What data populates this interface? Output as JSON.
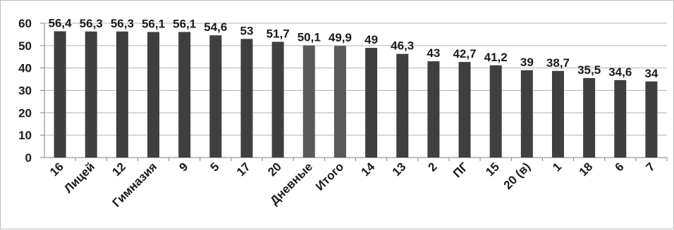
{
  "chart_data": {
    "type": "bar",
    "categories": [
      "16",
      "Лицей",
      "12",
      "Гимназия",
      "9",
      "5",
      "17",
      "20",
      "Дневные",
      "Итого",
      "14",
      "13",
      "2",
      "ПГ",
      "15",
      "20 (в)",
      "1",
      "18",
      "6",
      "7"
    ],
    "values": [
      56.4,
      56.3,
      56.3,
      56.1,
      56.1,
      54.6,
      53,
      51.7,
      50.1,
      49.9,
      49,
      46.3,
      43,
      42.7,
      41.2,
      39,
      38.7,
      35.5,
      34.6,
      34
    ],
    "data_labels": [
      "56,4",
      "56,3",
      "56,3",
      "56,1",
      "56,1",
      "54,6",
      "53",
      "51,7",
      "50,1",
      "49,9",
      "49",
      "46,3",
      "43",
      "42,7",
      "41,2",
      "39",
      "38,7",
      "35,5",
      "34,6",
      "34"
    ],
    "y_ticks": [
      "0",
      "10",
      "20",
      "30",
      "40",
      "50",
      "60"
    ],
    "ylim": [
      0,
      60
    ],
    "title": "",
    "xlabel": "",
    "ylabel": "",
    "grid": true,
    "legend": "none",
    "bar_color": "#3f3f3f",
    "highlight_color": "#595959",
    "highlight_categories": [
      "Дневные",
      "Итого"
    ]
  }
}
